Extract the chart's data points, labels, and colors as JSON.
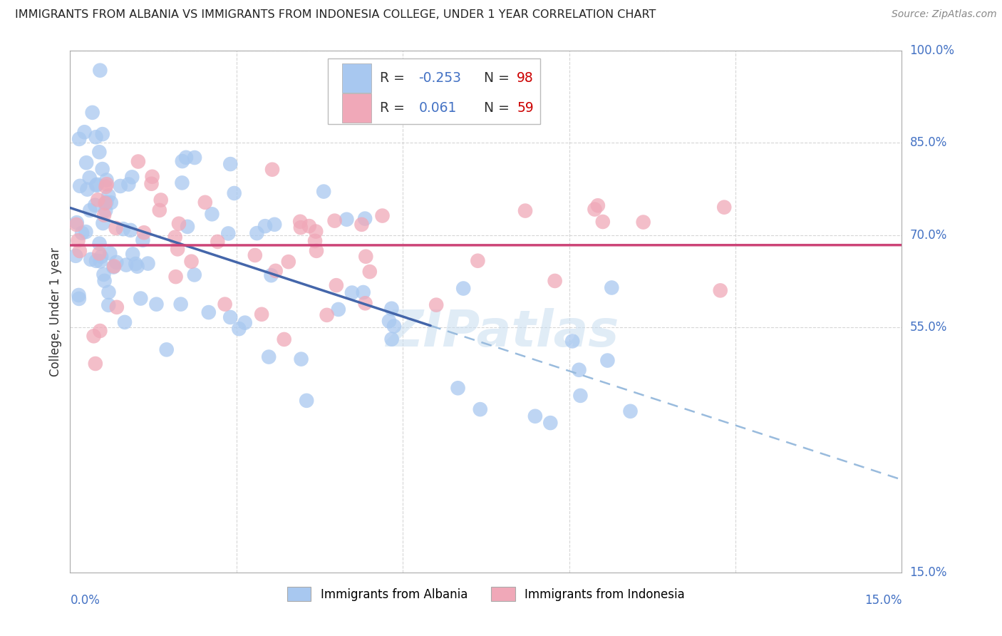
{
  "title": "IMMIGRANTS FROM ALBANIA VS IMMIGRANTS FROM INDONESIA COLLEGE, UNDER 1 YEAR CORRELATION CHART",
  "source": "Source: ZipAtlas.com",
  "ylabel_label": "College, Under 1 year",
  "legend_label1": "Immigrants from Albania",
  "legend_label2": "Immigrants from Indonesia",
  "r1": "-0.253",
  "n1": "98",
  "r2": "0.061",
  "n2": "59",
  "color_albania": "#a8c8f0",
  "color_indonesia": "#f0a8b8",
  "color_albania_line": "#4466aa",
  "color_indonesia_line": "#cc4477",
  "color_dashed": "#99bbdd",
  "watermark_color": "#c8ddf0",
  "x_min": 0.0,
  "x_max": 15.0,
  "y_min": 15.0,
  "y_max": 100.0,
  "y_ticks": [
    55.0,
    70.0,
    85.0,
    100.0
  ],
  "x_ticks": [
    3.0,
    6.0,
    9.0,
    12.0
  ],
  "grid_color": "#cccccc",
  "axis_color": "#aaaaaa",
  "label_color": "#4472c4",
  "title_color": "#222222",
  "source_color": "#888888"
}
